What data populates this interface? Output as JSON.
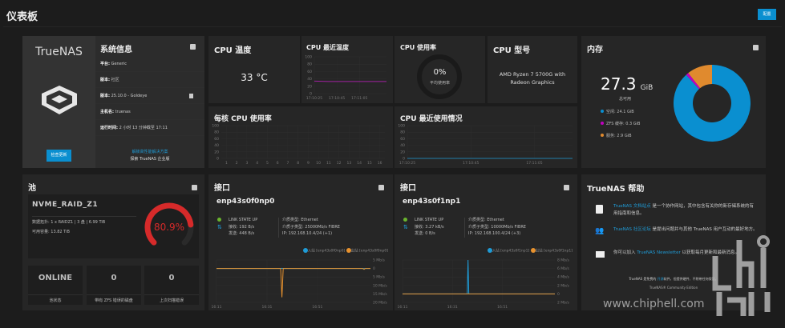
{
  "header": {
    "title": "仪表板",
    "config_button": "配置"
  },
  "sysinfo": {
    "logo": "TrueNAS",
    "title": "系统信息",
    "check_update": "检查更新",
    "rows": [
      {
        "label": "平台:",
        "value": "Generic"
      },
      {
        "label": "版本:",
        "value": "社区"
      },
      {
        "label": "版本:",
        "value": "25.10.0 - Goldeye"
      },
      {
        "label": "主机名:",
        "value": "truenas"
      },
      {
        "label": "运行时间:",
        "value": "2 小时 13 分钟截至 17:11"
      }
    ],
    "solutions_link": "解锁高性能解决方案",
    "enterprise": "探索 TrueNAS 企业版"
  },
  "cpu_temp": {
    "title": "CPU 温度",
    "value": "33 °C"
  },
  "cpu_recent_temp": {
    "title": "CPU 最近温度"
  },
  "cpu_usage": {
    "title": "CPU 使用率",
    "value": "0%",
    "caption": "平均使用率",
    "percent": 0
  },
  "cpu_model": {
    "title": "CPU 型号",
    "value": "AMD Ryzen 7 5700G with Radeon Graphics"
  },
  "per_core": {
    "title": "每核 CPU 使用率"
  },
  "cpu_recent_usage": {
    "title": "CPU 最近使用情况"
  },
  "memory": {
    "title": "内存",
    "total": "27.3",
    "unit": "GiB",
    "caption": "总可用",
    "legend": [
      {
        "label": "空闲: 24.1 GiB",
        "color": "#0a8fd0"
      },
      {
        "label": "ZFS 缓存: 0.3 GiB",
        "color": "#c000c0"
      },
      {
        "label": "服务: 2.9 GiB",
        "color": "#e08a2e"
      }
    ]
  },
  "pool": {
    "title": "池",
    "name": "NVME_RAID_Z1",
    "layout_label": "数据拓扑:",
    "layout": "1 x RAIDZ1 | 3 盘 | 6.99 TiB",
    "usable_label": "可用容量:",
    "usable": "13.82 TiB",
    "used_percent_text": "80.9%",
    "used_percent": 80.9,
    "gauge_color": "#d62a2a",
    "stats": [
      {
        "value": "ONLINE",
        "label": "池状态"
      },
      {
        "value": "0",
        "label": "带有 ZFS 错误的磁盘"
      },
      {
        "value": "0",
        "label": "上次扫描错误"
      }
    ]
  },
  "interfaces": [
    {
      "title": "接口",
      "name": "enp43s0f0np0",
      "link": "LINK STATE UP",
      "rx_label": "接收:",
      "rx": "192 B/s",
      "tx_label": "发送:",
      "tx": "448 B/s",
      "media_type": "介质类型: Ethernet",
      "media_subtype": "介质子类型: 25000Mb/s FIBRE",
      "ip": "IP:  192.168.10.4/24 (+1)",
      "legend_in": "入站 [enp43s0f0np0]",
      "legend_out": "出站 [enp43s0f0np0]"
    },
    {
      "title": "接口",
      "name": "enp43s0f1np1",
      "link": "LINK STATE UP",
      "rx_label": "接收:",
      "rx": "3.27 kB/s",
      "tx_label": "发送:",
      "tx": "0 B/s",
      "media_type": "介质类型: Ethernet",
      "media_subtype": "介质子类型: 10000Mb/s FIBRE",
      "ip": "IP:  192.168.100.4/24 (+3)",
      "legend_in": "入站 [enp43s0f1np1]",
      "legend_out": "出站 [enp43s0f1np1]"
    }
  ],
  "help": {
    "title": "TrueNAS 帮助",
    "items": [
      {
        "link": "TrueNAS 文档站点",
        "text": " 是一个协作网站，其中包含有关你的新存储系统的有用指南和信息。",
        "pre": ""
      },
      {
        "link": "TrueNAS 社区论坛",
        "text": " 是提出问题并与其他 TrueNAS 用户互动的最好地方。",
        "pre": ""
      },
      {
        "pre": "你可以加入 ",
        "link": "TrueNAS Newsletter",
        "text": " 以获取每月更新和最新消息。"
      }
    ],
    "footer_pre": "TrueNAS 是免费的 ",
    "footer_link": "开源",
    "footer_post": "软件，但提供硬件、不附带任何保证。",
    "edition": "TrueNAS® Community Edition"
  },
  "watermark": "www.chiphell.com",
  "chart_data": [
    {
      "id": "cpu-temp-chart",
      "type": "line",
      "title": "CPU 最近温度",
      "x": [
        "17:10:25",
        "17:10:35",
        "17:10:45",
        "17:10:55",
        "17:11:05",
        "17:11:11"
      ],
      "xticks": [
        "17:10:25",
        "17:10:45",
        "17:11:05"
      ],
      "series": [
        {
          "color": "#a020a0",
          "values": [
            34,
            33,
            33,
            33,
            33,
            33
          ]
        }
      ],
      "ylim": [
        0,
        100
      ],
      "yticks": [
        "100",
        "80",
        "60",
        "40",
        "20",
        "0"
      ]
    },
    {
      "id": "per-core-chart",
      "type": "bar",
      "title": "每核 CPU 使用率",
      "categories": [
        "1",
        "2",
        "3",
        "4",
        "5",
        "6",
        "7",
        "8",
        "9",
        "10",
        "11",
        "12",
        "13",
        "14",
        "15",
        "16"
      ],
      "values": [
        0,
        0,
        0,
        0,
        0,
        0,
        0,
        0,
        0,
        0,
        0,
        0,
        0,
        0,
        0,
        0
      ],
      "ylim": [
        0,
        100
      ],
      "yticks": [
        "100",
        "80",
        "60",
        "40",
        "20",
        "0"
      ]
    },
    {
      "id": "cpu-usage-chart",
      "type": "line",
      "title": "CPU 最近使用情况",
      "x": [
        "17:10:25",
        "17:10:45",
        "17:11:05",
        "17:11:11"
      ],
      "xticks": [
        "17:10:25",
        "17:10:45",
        "17:11:05"
      ],
      "series": [
        {
          "color": "#1f9bd6",
          "values": [
            0,
            0,
            0,
            0
          ]
        }
      ],
      "ylim": [
        0,
        100
      ],
      "yticks": [
        "100",
        "80",
        "60",
        "40",
        "20",
        "0"
      ]
    },
    {
      "id": "net0-chart",
      "type": "line",
      "xticks": [
        "16:11",
        "16:31",
        "16:51"
      ],
      "ylim": [
        -20,
        5
      ],
      "ytick_values": [
        5,
        0,
        -5,
        -10,
        -15,
        -20
      ],
      "yticks": [
        "5 Mb/s",
        "0",
        "5 Mb/s",
        "10 Mb/s",
        "15 Mb/s",
        "20 Mb/s"
      ],
      "series": [
        {
          "name": "入站 [enp43s0f0np0]",
          "color": "#1f9bd6",
          "x": [
            0,
            25,
            25.5,
            26,
            60
          ],
          "values": [
            0,
            0,
            0.1,
            0,
            0
          ]
        },
        {
          "name": "出站 [enp43s0f0np0]",
          "color": "#e8922e",
          "x": [
            0,
            25,
            25.5,
            26,
            57,
            57.5,
            58,
            60
          ],
          "values": [
            0,
            0,
            -17,
            0,
            0,
            -0.5,
            0,
            0
          ]
        }
      ]
    },
    {
      "id": "net1-chart",
      "type": "line",
      "xticks": [
        "16:11",
        "16:31",
        "16:51"
      ],
      "ylim": [
        -2,
        8
      ],
      "ytick_values": [
        8,
        6,
        4,
        2,
        0,
        -2
      ],
      "yticks": [
        "8 Mb/s",
        "6 Mb/s",
        "4 Mb/s",
        "2 Mb/s",
        "0",
        "2 Mb/s"
      ],
      "series": [
        {
          "name": "入站 [enp43s0f1np1]",
          "color": "#1f9bd6",
          "x": [
            0,
            25.5,
            25.8,
            26.1,
            60
          ],
          "values": [
            0,
            0,
            8,
            0,
            0
          ]
        },
        {
          "name": "出站 [enp43s0f1np1]",
          "color": "#e8922e",
          "x": [
            0,
            60
          ],
          "values": [
            0,
            0
          ]
        }
      ]
    }
  ]
}
